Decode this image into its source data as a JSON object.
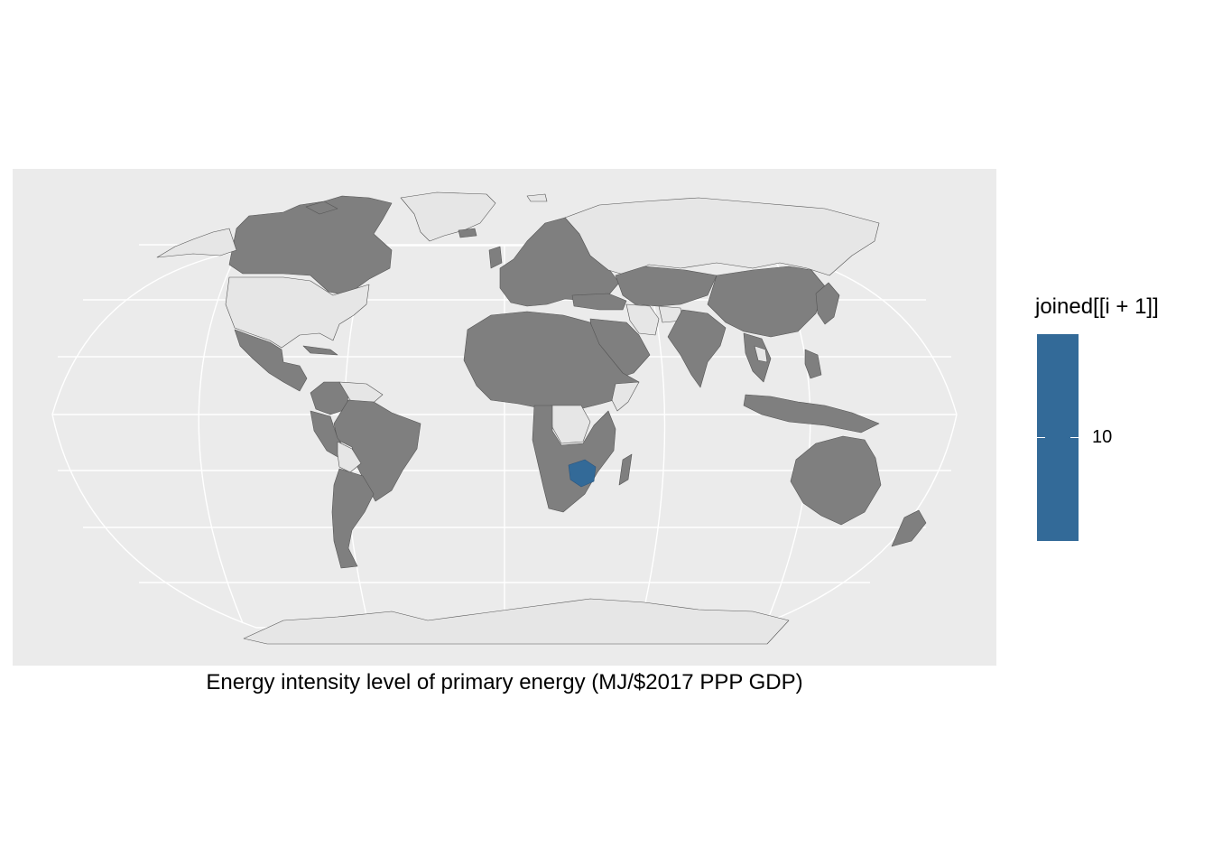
{
  "chart_data": {
    "type": "choropleth",
    "caption": "Energy intensity level of primary energy (MJ/$2017 PPP GDP)",
    "projection": "Robinson",
    "legend": {
      "title": "joined[[i + 1]]",
      "tick_labels": [
        "10"
      ],
      "placement": "right"
    },
    "fill_colors": {
      "panel": "#ebebeb",
      "grid": "#ffffff",
      "land_with_data": "#7f7f7f",
      "land_no_data": "#e6e6e6",
      "highlighted": "#336a98",
      "border": "#555555"
    },
    "highlighted_countries": [
      {
        "name": "Zimbabwe",
        "value": 10
      }
    ],
    "no_data_regions": [
      "United States",
      "Russia",
      "Greenland",
      "Antarctica",
      "Bolivia",
      "Iran",
      "Afghanistan",
      "Somalia",
      "Democratic Republic of the Congo",
      "Venezuela",
      "Laos"
    ]
  }
}
